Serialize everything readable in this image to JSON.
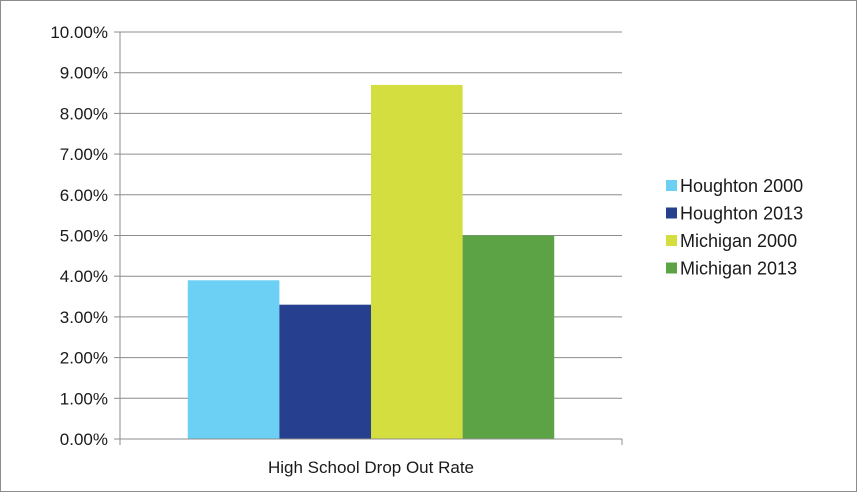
{
  "chart_data": {
    "type": "bar",
    "categories": [
      "High School Drop Out Rate"
    ],
    "series": [
      {
        "name": "Houghton 2000",
        "values": [
          3.9
        ],
        "color": "#6cd0f5"
      },
      {
        "name": "Houghton 2013",
        "values": [
          3.3
        ],
        "color": "#263f8f"
      },
      {
        "name": "Michigan 2000",
        "values": [
          8.7
        ],
        "color": "#d4df3f"
      },
      {
        "name": "Michigan 2013",
        "values": [
          5.0
        ],
        "color": "#5ba344"
      }
    ],
    "y_ticks": [
      "0.00%",
      "1.00%",
      "2.00%",
      "3.00%",
      "4.00%",
      "5.00%",
      "6.00%",
      "7.00%",
      "8.00%",
      "9.00%",
      "10.00%"
    ],
    "ylim": [
      0,
      10
    ],
    "grid": true,
    "legend_position": "right",
    "title": "",
    "xlabel": "",
    "ylabel": ""
  }
}
